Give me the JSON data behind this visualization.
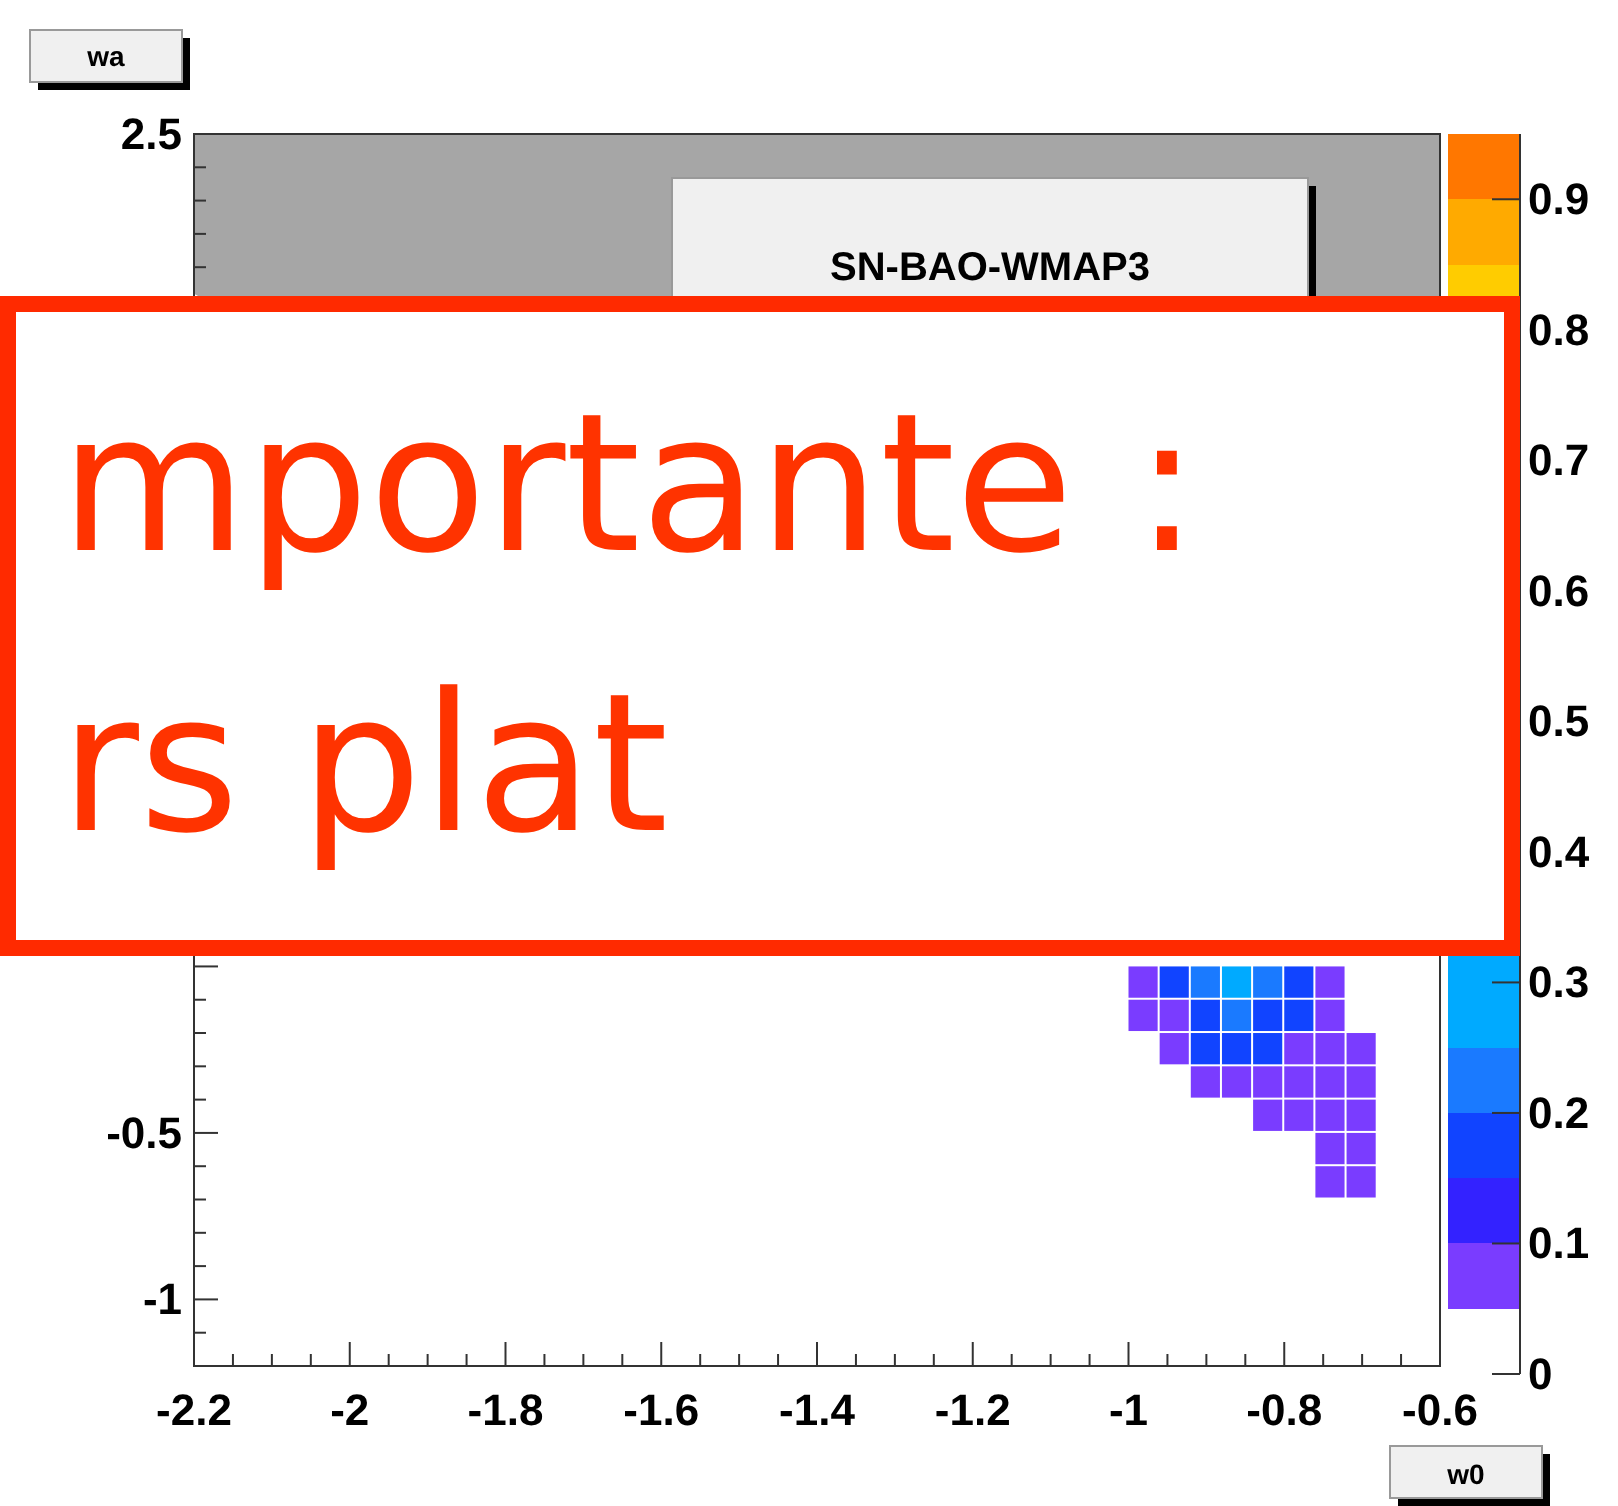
{
  "chart_data": {
    "type": "scatter",
    "xlabel": "w0",
    "ylabel": "wa",
    "marker": "square",
    "xlim": [
      -2.2,
      -0.6
    ],
    "xticks": [
      -2.2,
      -2,
      -1.8,
      -1.6,
      -1.4,
      -1.2,
      -1,
      -0.8,
      -0.6
    ],
    "ylim": [
      -1.2,
      2.5
    ],
    "yticks": [
      -1,
      -0.5,
      2.5
    ],
    "clim": [
      0,
      0.95
    ],
    "cticks": [
      0,
      0.1,
      0.2,
      0.3,
      0.4,
      0.5,
      0.6,
      0.7,
      0.8,
      0.9
    ],
    "annotations": [
      "SN-BAO-WMAP3",
      "mportante :",
      "rs plat"
    ],
    "x": [
      -0.98,
      -0.94,
      -0.9,
      -0.86,
      -0.82,
      -0.78,
      -0.74,
      -0.98,
      -0.94,
      -0.9,
      -0.86,
      -0.82,
      -0.78,
      -0.74,
      -0.94,
      -0.9,
      -0.86,
      -0.82,
      -0.78,
      -0.74,
      -0.7,
      -0.9,
      -0.86,
      -0.82,
      -0.78,
      -0.74,
      -0.7,
      -0.82,
      -0.78,
      -0.74,
      -0.7,
      -0.74,
      -0.7,
      -0.74,
      -0.7
    ],
    "values": [
      -0.05,
      -0.05,
      -0.05,
      -0.05,
      -0.05,
      -0.05,
      -0.05,
      -0.15,
      -0.15,
      -0.15,
      -0.15,
      -0.15,
      -0.15,
      -0.15,
      -0.25,
      -0.25,
      -0.25,
      -0.25,
      -0.25,
      -0.25,
      -0.25,
      -0.35,
      -0.35,
      -0.35,
      -0.35,
      -0.35,
      -0.35,
      -0.45,
      -0.45,
      -0.45,
      -0.45,
      -0.55,
      -0.55,
      -0.65,
      -0.65
    ],
    "cvalues": [
      0.07,
      0.17,
      0.22,
      0.27,
      0.22,
      0.17,
      0.07,
      0.07,
      0.07,
      0.17,
      0.22,
      0.17,
      0.17,
      0.07,
      0.07,
      0.17,
      0.17,
      0.17,
      0.07,
      0.07,
      0.07,
      0.07,
      0.07,
      0.07,
      0.07,
      0.07,
      0.07,
      0.07,
      0.07,
      0.07,
      0.07,
      0.07,
      0.07,
      0.07,
      0.07
    ]
  }
}
